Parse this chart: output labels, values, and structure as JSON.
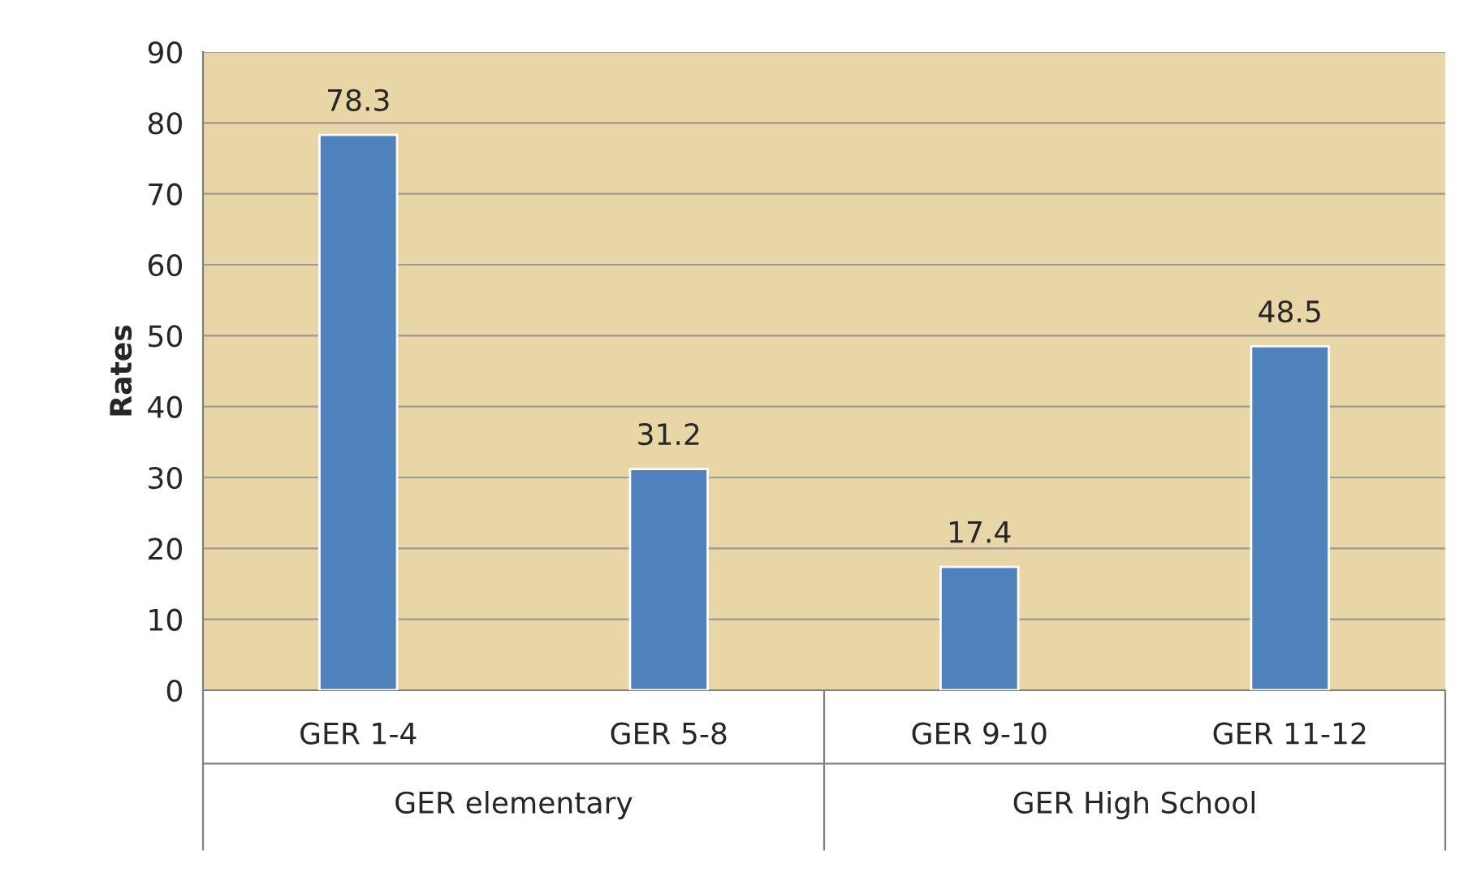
{
  "chart_data": {
    "type": "bar",
    "ylabel": "Rates",
    "categories": [
      "GER 1-4",
      "GER 5-8",
      "GER 9-10",
      "GER 11-12"
    ],
    "values": [
      78.3,
      31.2,
      17.4,
      48.5
    ],
    "color": "#4f81bd",
    "data_labels": true,
    "ylim": [
      0,
      90
    ],
    "yticks": [
      0,
      10,
      20,
      30,
      40,
      50,
      60,
      70,
      80,
      90
    ],
    "grid": "y",
    "legend": false,
    "annotations": [
      "GER elementary",
      "GER High School"
    ]
  }
}
